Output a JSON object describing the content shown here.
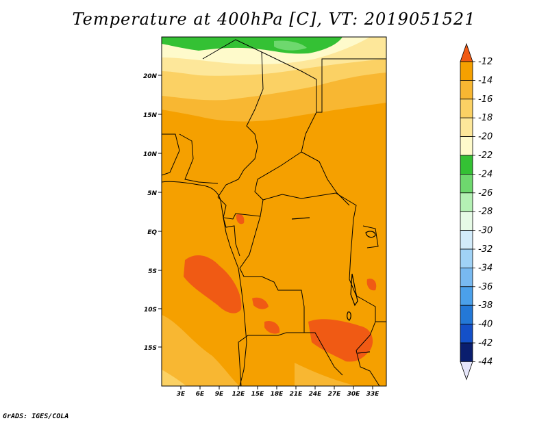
{
  "title": "Temperature at 400hPa [C], VT: 2019051521",
  "credit": "GrADS: IGES/COLA",
  "map": {
    "lat_labels": [
      "20N",
      "15N",
      "10N",
      "5N",
      "EQ",
      "5S",
      "10S",
      "15S"
    ],
    "lon_labels": [
      "3E",
      "6E",
      "9E",
      "12E",
      "15E",
      "18E",
      "21E",
      "24E",
      "27E",
      "30E",
      "33E"
    ]
  },
  "colorbar": {
    "labels": [
      "-12",
      "-14",
      "-16",
      "-18",
      "-20",
      "-22",
      "-24",
      "-26",
      "-28",
      "-30",
      "-32",
      "-34",
      "-36",
      "-38",
      "-40",
      "-42",
      "-44"
    ],
    "colors": [
      "#f05a14",
      "#f5a000",
      "#f8b732",
      "#fbd164",
      "#fde79a",
      "#fefacb",
      "#34c134",
      "#6ed86e",
      "#b4f0b4",
      "#e6fae6",
      "#d2ebfa",
      "#a0d2f6",
      "#78b9f0",
      "#4ba0ea",
      "#2378d7",
      "#1450c8",
      "#0a1e6e",
      "#e6e6fa"
    ]
  }
}
